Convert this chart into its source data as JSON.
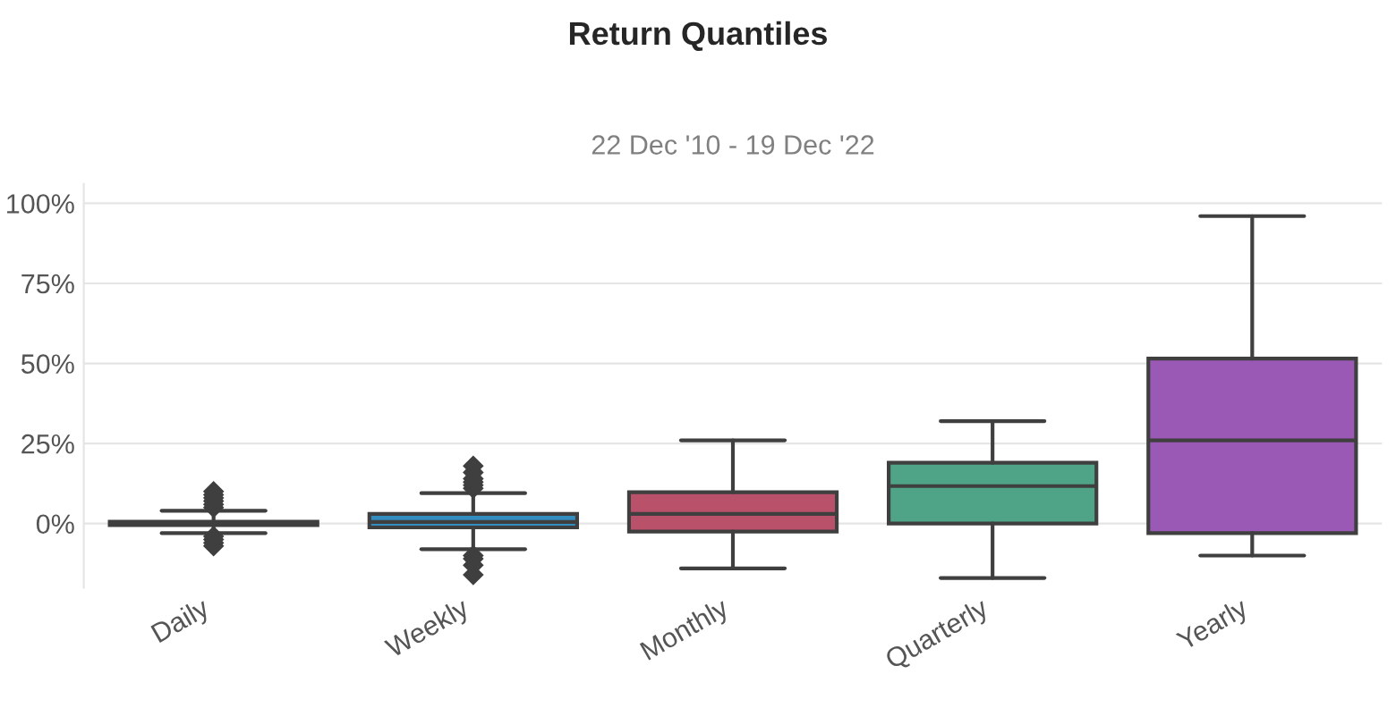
{
  "chart_data": {
    "type": "box",
    "title": "Return Quantiles",
    "subtitle": "22 Dec '10 - 19 Dec '22",
    "categories": [
      "Daily",
      "Weekly",
      "Monthly",
      "Quarterly",
      "Yearly"
    ],
    "colors": [
      "#fedd78",
      "#348dc1",
      "#ba516b",
      "#4fa487",
      "#9b59b6"
    ],
    "boxes": [
      {
        "low": -3,
        "q1": -0.5,
        "median": 0,
        "q3": 0.6,
        "high": 4,
        "outliers": [
          5,
          6,
          7,
          8,
          9,
          10,
          -4,
          -5,
          -6,
          -7
        ]
      },
      {
        "low": -8,
        "q1": -1.2,
        "median": 0.5,
        "q3": 3,
        "high": 9.5,
        "outliers": [
          11,
          12,
          13,
          14,
          16,
          18,
          -10,
          -11,
          -13,
          -16
        ]
      },
      {
        "low": -14,
        "q1": -2.5,
        "median": 3,
        "q3": 9.8,
        "high": 26
      },
      {
        "low": -17,
        "q1": 0,
        "median": 11.7,
        "q3": 19,
        "high": 32
      },
      {
        "low": -10,
        "q1": -3,
        "median": 26,
        "q3": 51.5,
        "high": 96
      }
    ],
    "ylim": [
      -20,
      106
    ],
    "yticks": [
      {
        "value": 0,
        "label": "0%"
      },
      {
        "value": 25,
        "label": "25%"
      },
      {
        "value": 50,
        "label": "50%"
      },
      {
        "value": 75,
        "label": "75%"
      },
      {
        "value": 100,
        "label": "100%"
      }
    ],
    "grid": "y",
    "marker": "diamond"
  }
}
